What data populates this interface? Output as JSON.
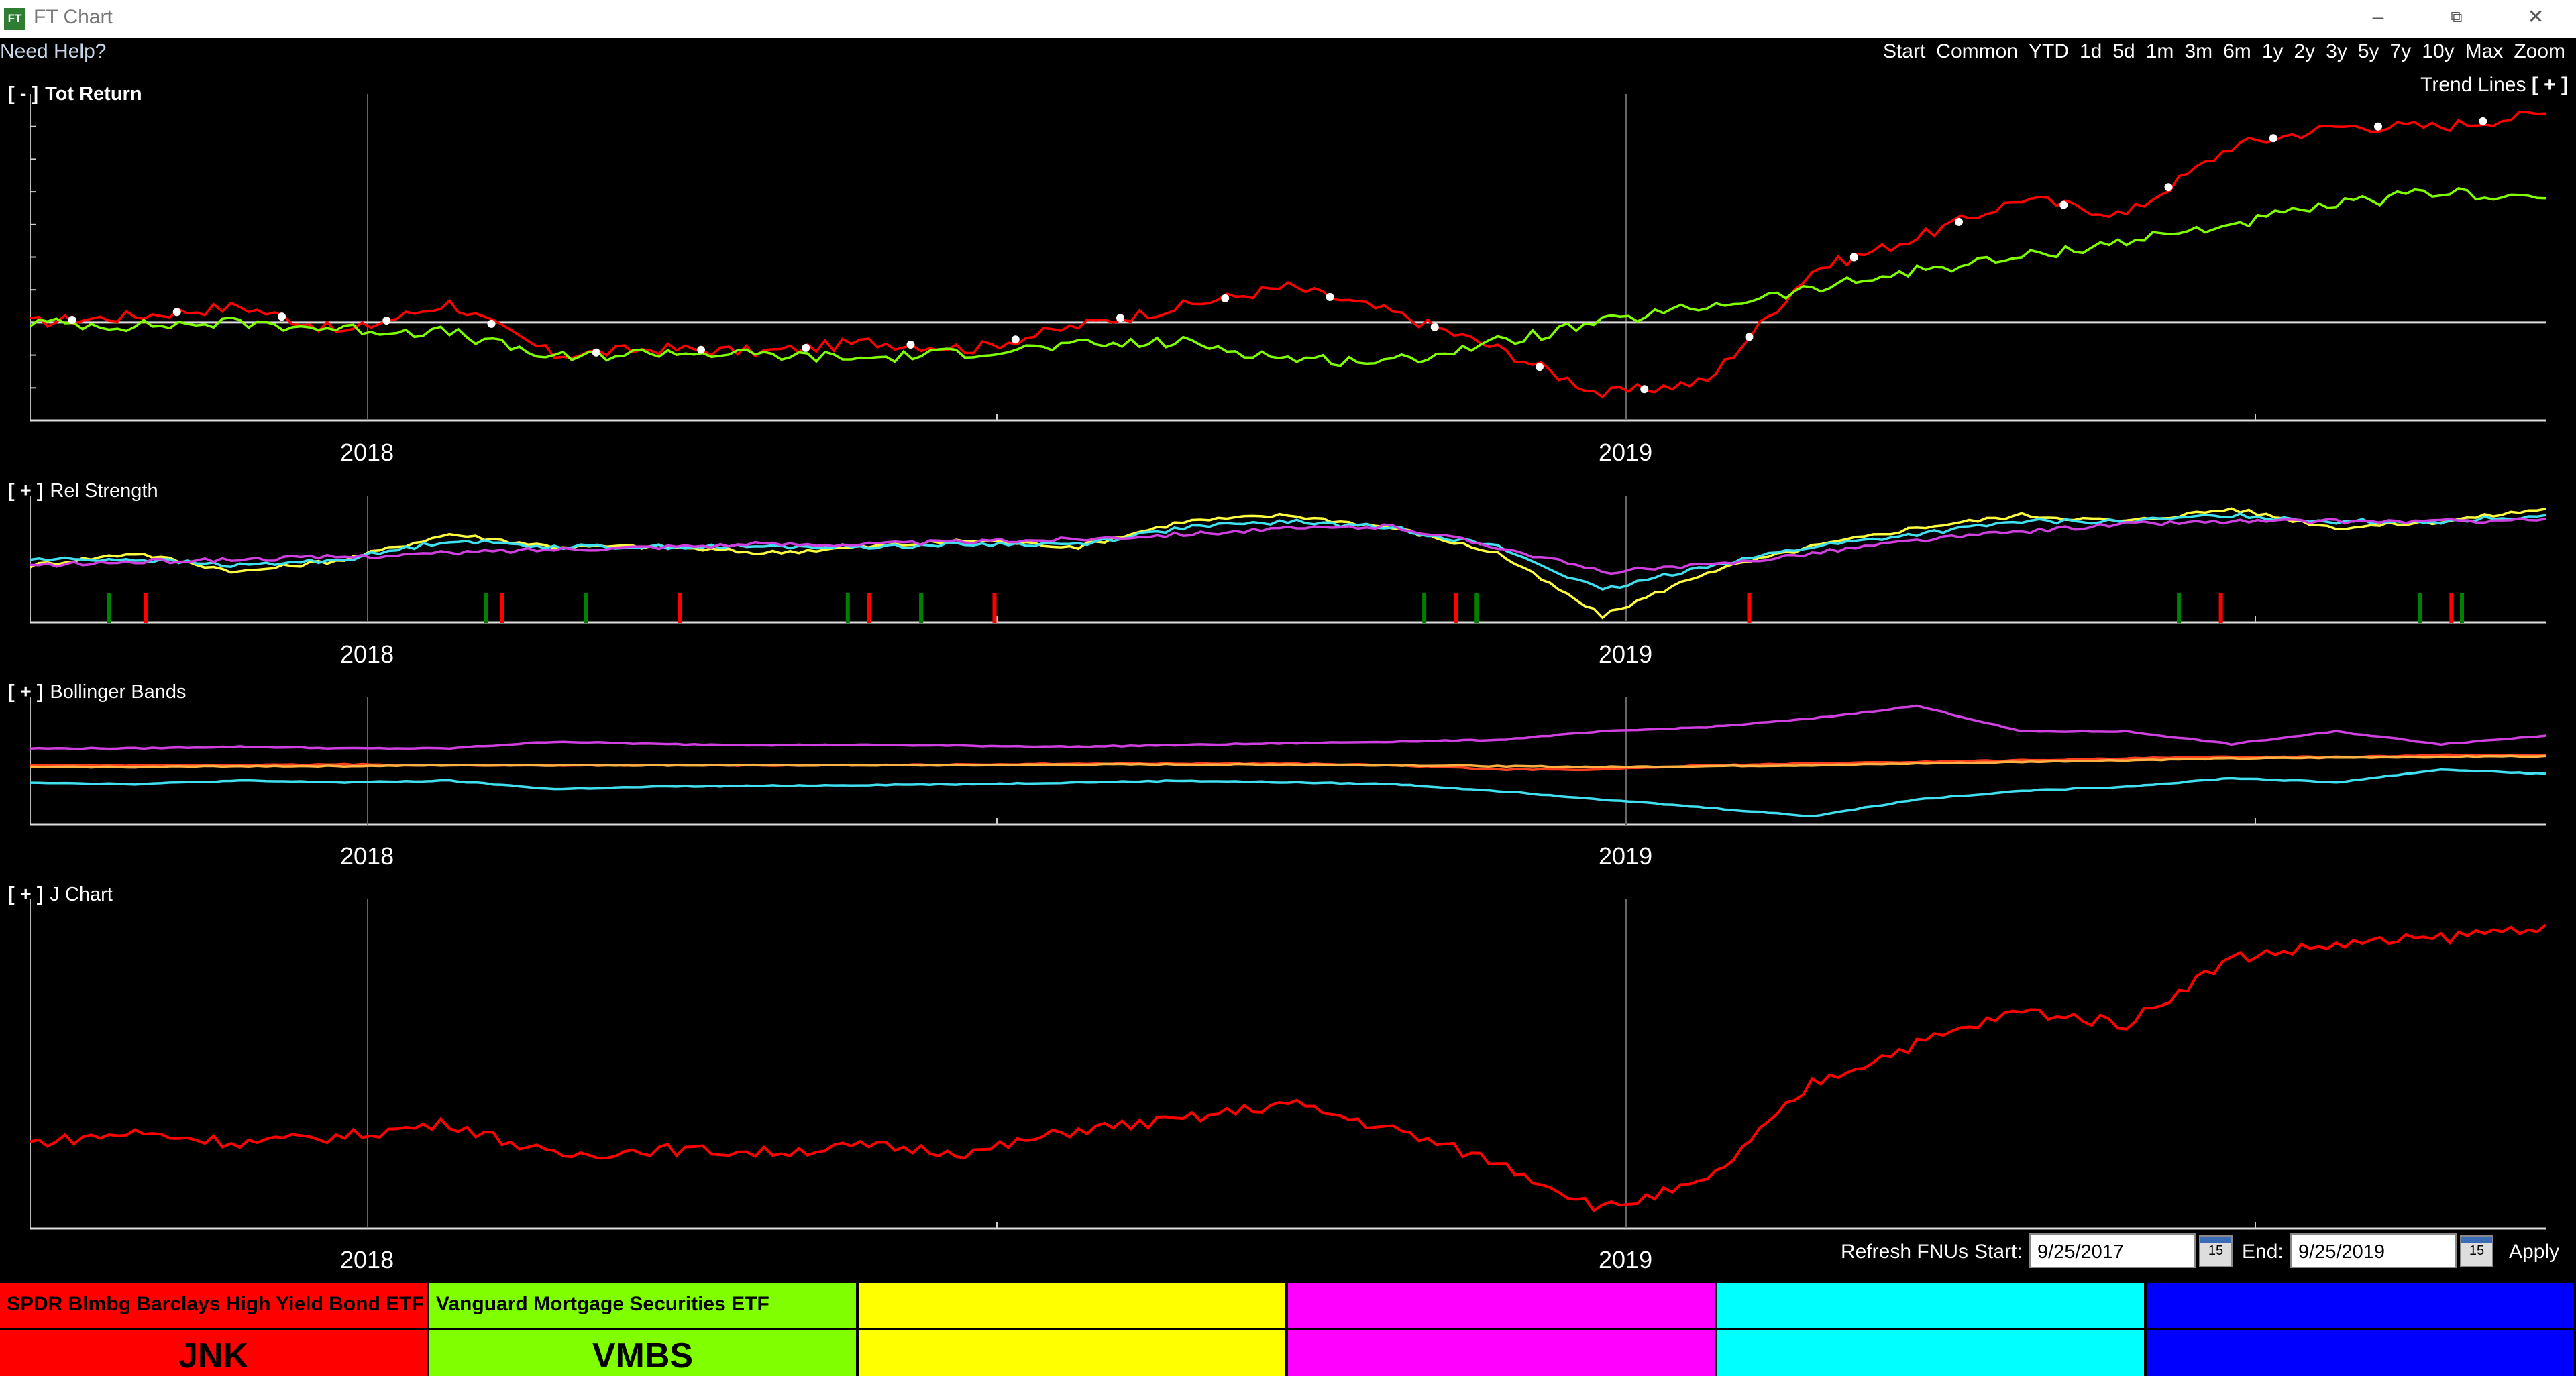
{
  "window": {
    "logo": "FT",
    "title": "FT Chart",
    "minimize": "–",
    "restore": "⧉",
    "close": "✕"
  },
  "help": {
    "label": "Need Help?"
  },
  "periods": [
    "Start",
    "Common",
    "YTD",
    "1d",
    "5d",
    "1m",
    "3m",
    "6m",
    "1y",
    "2y",
    "3y",
    "5y",
    "7y",
    "10y",
    "Max",
    "Zoom"
  ],
  "trend_lines": {
    "label": "Trend Lines",
    "toggle": "[ + ]"
  },
  "panels": {
    "tot_return": {
      "toggle": "[ - ]",
      "label": "Tot Return"
    },
    "rel_strength": {
      "toggle": "[ + ]",
      "label": "Rel Strength"
    },
    "bollinger": {
      "toggle": "[ + ]",
      "label": "Bollinger Bands"
    },
    "jchart": {
      "toggle": "[ + ]",
      "label": "J Chart"
    }
  },
  "years": {
    "y2018": "2018",
    "y2019": "2019"
  },
  "date_bar": {
    "refresh_label": "Refresh FNUs",
    "start_label": "Start:",
    "start_value": "9/25/2017",
    "end_label": "End:",
    "end_value": "9/25/2019",
    "calendar_icon": "15",
    "apply_label": "Apply"
  },
  "tiles": [
    {
      "name": "SPDR Blmbg Barclays High Yield Bond ETF",
      "symbol": "JNK",
      "color": "#ff0000"
    },
    {
      "name": "Vanguard Mortgage Securities ETF",
      "symbol": "VMBS",
      "color": "#80ff00"
    },
    {
      "name": "",
      "symbol": "",
      "color": "#ffff00"
    },
    {
      "name": "",
      "symbol": "",
      "color": "#ff00ff"
    },
    {
      "name": "",
      "symbol": "",
      "color": "#00ffff"
    },
    {
      "name": "",
      "symbol": "",
      "color": "#0000ff"
    }
  ],
  "chart_data": [
    {
      "type": "line",
      "panel": "Tot Return",
      "x": [
        "2017-09",
        "2017-10",
        "2017-11",
        "2017-12",
        "2018-01",
        "2018-02",
        "2018-03",
        "2018-04",
        "2018-05",
        "2018-06",
        "2018-07",
        "2018-08",
        "2018-09",
        "2018-10",
        "2018-11",
        "2018-12",
        "2019-01",
        "2019-02",
        "2019-03",
        "2019-04",
        "2019-05",
        "2019-06",
        "2019-07",
        "2019-08",
        "2019-09"
      ],
      "series": [
        {
          "name": "JNK",
          "color": "#ff0000",
          "values": [
            0.0,
            0.2,
            0.5,
            -0.3,
            0.6,
            -1.0,
            -0.8,
            -0.9,
            -0.6,
            -0.8,
            -0.1,
            0.5,
            1.1,
            0.3,
            -0.8,
            -2.2,
            -1.8,
            1.6,
            2.6,
            3.8,
            3.3,
            5.4,
            6.0,
            6.0,
            6.4
          ]
        },
        {
          "name": "VMBS",
          "color": "#80ff00",
          "values": [
            0.0,
            -0.1,
            0.0,
            -0.2,
            -0.3,
            -1.1,
            -0.9,
            -1.0,
            -1.1,
            -0.9,
            -0.7,
            -0.6,
            -1.1,
            -1.2,
            -0.6,
            0.0,
            0.5,
            1.0,
            1.6,
            2.0,
            2.5,
            3.0,
            3.6,
            4.0,
            3.8
          ]
        }
      ],
      "zero_line": true
    },
    {
      "type": "line",
      "panel": "Rel Strength",
      "x": [
        "2017-09",
        "2017-10",
        "2017-11",
        "2017-12",
        "2018-01",
        "2018-02",
        "2018-03",
        "2018-04",
        "2018-05",
        "2018-06",
        "2018-07",
        "2018-08",
        "2018-09",
        "2018-10",
        "2018-11",
        "2018-12",
        "2019-01",
        "2019-02",
        "2019-03",
        "2019-04",
        "2019-05",
        "2019-06",
        "2019-07",
        "2019-08",
        "2019-09"
      ],
      "series": [
        {
          "color": "#ffff40",
          "values": [
            0.45,
            0.55,
            0.4,
            0.5,
            0.7,
            0.6,
            0.6,
            0.55,
            0.6,
            0.65,
            0.6,
            0.8,
            0.85,
            0.75,
            0.55,
            0.05,
            0.4,
            0.6,
            0.75,
            0.85,
            0.8,
            0.9,
            0.75,
            0.8,
            0.9
          ]
        },
        {
          "color": "#40e0f0",
          "values": [
            0.5,
            0.5,
            0.45,
            0.5,
            0.65,
            0.6,
            0.6,
            0.6,
            0.6,
            0.62,
            0.62,
            0.75,
            0.8,
            0.75,
            0.6,
            0.25,
            0.45,
            0.6,
            0.7,
            0.8,
            0.8,
            0.85,
            0.8,
            0.8,
            0.85
          ]
        },
        {
          "color": "#d040e0",
          "values": [
            0.45,
            0.48,
            0.5,
            0.52,
            0.55,
            0.58,
            0.6,
            0.62,
            0.62,
            0.64,
            0.66,
            0.7,
            0.74,
            0.76,
            0.6,
            0.4,
            0.45,
            0.55,
            0.65,
            0.72,
            0.78,
            0.8,
            0.8,
            0.8,
            0.82
          ]
        }
      ],
      "signals": {
        "buy_color": "#008000",
        "sell_color": "#ff0000"
      }
    },
    {
      "type": "line",
      "panel": "Bollinger Bands",
      "x": [
        "2017-09",
        "2017-10",
        "2017-11",
        "2017-12",
        "2018-01",
        "2018-02",
        "2018-03",
        "2018-04",
        "2018-05",
        "2018-06",
        "2018-07",
        "2018-08",
        "2018-09",
        "2018-10",
        "2018-11",
        "2018-12",
        "2019-01",
        "2019-02",
        "2019-03",
        "2019-04",
        "2019-05",
        "2019-06",
        "2019-07",
        "2019-08",
        "2019-09"
      ],
      "series": [
        {
          "color": "#d040e0",
          "values": [
            0.8,
            0.8,
            0.82,
            0.8,
            0.8,
            0.88,
            0.85,
            0.84,
            0.84,
            0.83,
            0.82,
            0.84,
            0.86,
            0.88,
            0.9,
            1.0,
            1.05,
            1.15,
            1.3,
            1.0,
            1.0,
            0.85,
            1.0,
            0.85,
            0.95
          ]
        },
        {
          "color": "#ff4020",
          "values": [
            0.6,
            0.6,
            0.6,
            0.61,
            0.6,
            0.6,
            0.6,
            0.6,
            0.6,
            0.61,
            0.62,
            0.62,
            0.62,
            0.6,
            0.55,
            0.55,
            0.6,
            0.62,
            0.64,
            0.66,
            0.68,
            0.7,
            0.7,
            0.72,
            0.72
          ]
        },
        {
          "color": "#ffb040",
          "values": [
            0.58,
            0.58,
            0.59,
            0.59,
            0.6,
            0.6,
            0.6,
            0.6,
            0.6,
            0.6,
            0.61,
            0.61,
            0.61,
            0.6,
            0.59,
            0.58,
            0.59,
            0.6,
            0.62,
            0.64,
            0.66,
            0.68,
            0.69,
            0.7,
            0.71
          ]
        },
        {
          "color": "#40e0f0",
          "values": [
            0.4,
            0.38,
            0.42,
            0.4,
            0.42,
            0.32,
            0.35,
            0.36,
            0.37,
            0.38,
            0.4,
            0.42,
            0.4,
            0.38,
            0.3,
            0.2,
            0.1,
            0.0,
            0.2,
            0.3,
            0.35,
            0.45,
            0.4,
            0.55,
            0.5
          ]
        }
      ]
    },
    {
      "type": "line",
      "panel": "J Chart",
      "x": [
        "2017-09",
        "2017-10",
        "2017-11",
        "2017-12",
        "2018-01",
        "2018-02",
        "2018-03",
        "2018-04",
        "2018-05",
        "2018-06",
        "2018-07",
        "2018-08",
        "2018-09",
        "2018-10",
        "2018-11",
        "2018-12",
        "2019-01",
        "2019-02",
        "2019-03",
        "2019-04",
        "2019-05",
        "2019-06",
        "2019-07",
        "2019-08",
        "2019-09"
      ],
      "series": [
        {
          "name": "JNK",
          "color": "#ff0000",
          "values": [
            0.0,
            0.3,
            0.0,
            0.2,
            0.6,
            -0.4,
            -0.2,
            -0.3,
            -0.1,
            -0.3,
            0.4,
            0.7,
            1.2,
            0.4,
            -0.6,
            -2.0,
            -1.2,
            1.8,
            3.0,
            4.0,
            3.6,
            5.6,
            6.0,
            6.2,
            6.6
          ]
        }
      ]
    }
  ]
}
